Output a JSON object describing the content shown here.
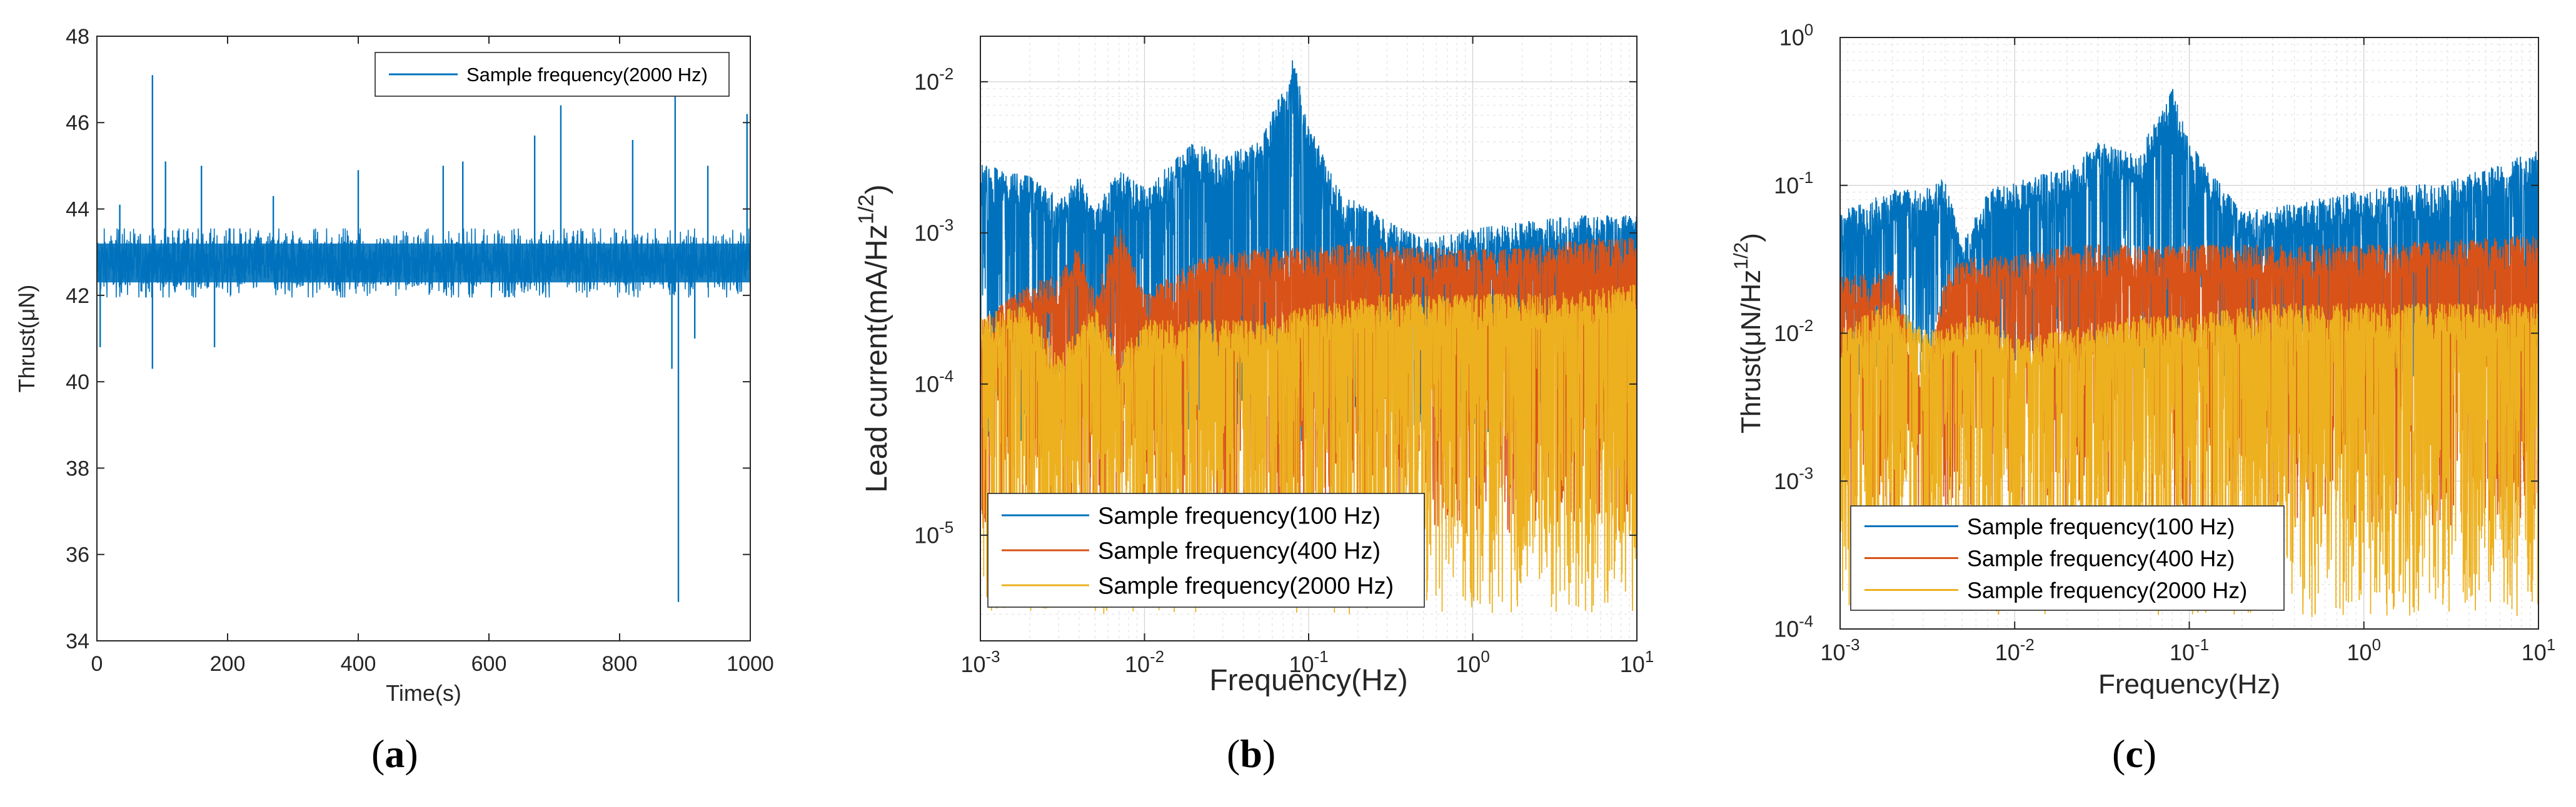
{
  "chart_data": [
    {
      "type": "line",
      "panel": "(a)",
      "panel_letter": "a",
      "title": "",
      "xlabel": "Time(s)",
      "ylabel": "Thrust(μN)",
      "xscale": "linear",
      "yscale": "linear",
      "xlim": [
        0,
        1000
      ],
      "ylim": [
        34,
        48
      ],
      "xticks": [
        0,
        200,
        400,
        600,
        800,
        1000
      ],
      "xtick_labels": [
        "0",
        "200",
        "400",
        "600",
        "800",
        "1000"
      ],
      "yticks": [
        34,
        36,
        38,
        40,
        42,
        44,
        46,
        48
      ],
      "ytick_labels": [
        "34",
        "36",
        "38",
        "40",
        "42",
        "44",
        "46",
        "48"
      ],
      "grid": false,
      "legend_position": "top-right",
      "series": [
        {
          "name": "Sample frequency(2000 Hz)",
          "color": "#0072BD",
          "band": [
            42.1,
            43.4
          ],
          "mean": 42.75,
          "spikes_up": [
            [
              0,
              44.2
            ],
            [
              35,
              44.1
            ],
            [
              85,
              47.1
            ],
            [
              105,
              45.1
            ],
            [
              160,
              45.0
            ],
            [
              270,
              44.3
            ],
            [
              400,
              44.9
            ],
            [
              530,
              45.0
            ],
            [
              560,
              45.1
            ],
            [
              670,
              45.7
            ],
            [
              710,
              46.4
            ],
            [
              820,
              45.6
            ],
            [
              885,
              46.6
            ],
            [
              935,
              45.0
            ],
            [
              995,
              46.2
            ]
          ],
          "spikes_down": [
            [
              5,
              40.8
            ],
            [
              85,
              40.3
            ],
            [
              180,
              40.8
            ],
            [
              880,
              40.3
            ],
            [
              890,
              34.9
            ],
            [
              915,
              41.0
            ]
          ]
        }
      ]
    },
    {
      "type": "line",
      "panel": "(b)",
      "panel_letter": "b",
      "title": "",
      "xlabel": "Frequency(Hz)",
      "ylabel": "Lead current(mA/Hz",
      "ylabel_exponent": "1/2",
      "ylabel_close": ")",
      "xscale": "log",
      "yscale": "log",
      "xlim": [
        0.001,
        10
      ],
      "ylim": [
        2e-06,
        0.02
      ],
      "xticks": [
        0.001,
        0.01,
        0.1,
        1,
        10
      ],
      "xtick_labels": [
        [
          "10",
          "-3"
        ],
        [
          "10",
          "-2"
        ],
        [
          "10",
          "-1"
        ],
        [
          "10",
          "0"
        ],
        [
          "10",
          "1"
        ]
      ],
      "yticks": [
        1e-05,
        0.0001,
        0.001,
        0.01
      ],
      "ytick_labels": [
        [
          "10",
          "-5"
        ],
        [
          "10",
          "-4"
        ],
        [
          "10",
          "-3"
        ],
        [
          "10",
          "-2"
        ]
      ],
      "grid": true,
      "legend_position": "bottom-left",
      "series": [
        {
          "name": "Sample frequency(100 Hz)",
          "color": "#0072BD",
          "points": [
            [
              0.001,
              0.0022
            ],
            [
              0.002,
              0.0018
            ],
            [
              0.003,
              0.0013
            ],
            [
              0.004,
              0.0018
            ],
            [
              0.005,
              0.0011
            ],
            [
              0.007,
              0.002
            ],
            [
              0.01,
              0.0015
            ],
            [
              0.02,
              0.003
            ],
            [
              0.03,
              0.0025
            ],
            [
              0.05,
              0.003
            ],
            [
              0.07,
              0.007
            ],
            [
              0.08,
              0.011
            ],
            [
              0.1,
              0.004
            ],
            [
              0.15,
              0.0015
            ],
            [
              0.3,
              0.0009
            ],
            [
              0.5,
              0.0007
            ],
            [
              1,
              0.0008
            ],
            [
              2,
              0.0009
            ],
            [
              5,
              0.001
            ],
            [
              10,
              0.001
            ]
          ],
          "noise_lower": 4e-05
        },
        {
          "name": "Sample frequency(400 Hz)",
          "color": "#D95319",
          "points": [
            [
              0.001,
              0.0002
            ],
            [
              0.002,
              0.00035
            ],
            [
              0.003,
              0.0004
            ],
            [
              0.004,
              0.00065
            ],
            [
              0.005,
              0.0003
            ],
            [
              0.007,
              0.0009
            ],
            [
              0.01,
              0.0003
            ],
            [
              0.02,
              0.0005
            ],
            [
              0.05,
              0.0006
            ],
            [
              0.1,
              0.0006
            ],
            [
              0.2,
              0.00065
            ],
            [
              0.5,
              0.0006
            ],
            [
              1,
              0.0006
            ],
            [
              2,
              0.0006
            ],
            [
              5,
              0.0007
            ],
            [
              10,
              0.0007
            ]
          ],
          "noise_lower": 1e-05
        },
        {
          "name": "Sample frequency(2000 Hz)",
          "color": "#EDB120",
          "points": [
            [
              0.001,
              0.00022
            ],
            [
              0.002,
              0.00025
            ],
            [
              0.003,
              0.00012
            ],
            [
              0.004,
              0.00018
            ],
            [
              0.005,
              0.00025
            ],
            [
              0.007,
              0.00012
            ],
            [
              0.01,
              0.0002
            ],
            [
              0.02,
              0.0002
            ],
            [
              0.05,
              0.0002
            ],
            [
              0.1,
              0.00025
            ],
            [
              0.3,
              0.0003
            ],
            [
              1,
              0.0003
            ],
            [
              3,
              0.0003
            ],
            [
              10,
              0.00035
            ]
          ],
          "noise_lower": 3e-06
        }
      ]
    },
    {
      "type": "line",
      "panel": "(c)",
      "panel_letter": "c",
      "title": "",
      "xlabel": "Frequency(Hz)",
      "ylabel": "Thrust(μN/Hz",
      "ylabel_exponent": "1/2",
      "ylabel_close": ")",
      "xscale": "log",
      "yscale": "log",
      "xlim": [
        0.001,
        10
      ],
      "ylim": [
        0.0001,
        1
      ],
      "xticks": [
        0.001,
        0.01,
        0.1,
        1,
        10
      ],
      "xtick_labels": [
        [
          "10",
          "-3"
        ],
        [
          "10",
          "-2"
        ],
        [
          "10",
          "-1"
        ],
        [
          "10",
          "0"
        ],
        [
          "10",
          "1"
        ]
      ],
      "yticks": [
        0.0001,
        0.001,
        0.01,
        0.1,
        1
      ],
      "ytick_labels": [
        [
          "10",
          "-4"
        ],
        [
          "10",
          "-3"
        ],
        [
          "10",
          "-2"
        ],
        [
          "10",
          "-1"
        ],
        [
          "10",
          "0"
        ]
      ],
      "grid": true,
      "legend_position": "bottom-left",
      "series": [
        {
          "name": "Sample frequency(100 Hz)",
          "color": "#0072BD",
          "points": [
            [
              0.001,
              0.05
            ],
            [
              0.002,
              0.07
            ],
            [
              0.003,
              0.07
            ],
            [
              0.004,
              0.085
            ],
            [
              0.005,
              0.03
            ],
            [
              0.007,
              0.07
            ],
            [
              0.01,
              0.08
            ],
            [
              0.02,
              0.1
            ],
            [
              0.03,
              0.15
            ],
            [
              0.05,
              0.12
            ],
            [
              0.07,
              0.25
            ],
            [
              0.08,
              0.35
            ],
            [
              0.1,
              0.15
            ],
            [
              0.2,
              0.05
            ],
            [
              0.5,
              0.06
            ],
            [
              1,
              0.07
            ],
            [
              3,
              0.08
            ],
            [
              10,
              0.13
            ]
          ],
          "noise_lower": 0.005
        },
        {
          "name": "Sample frequency(400 Hz)",
          "color": "#D95319",
          "points": [
            [
              0.001,
              0.018
            ],
            [
              0.002,
              0.02
            ],
            [
              0.003,
              0.003
            ],
            [
              0.004,
              0.018
            ],
            [
              0.005,
              0.025
            ],
            [
              0.007,
              0.025
            ],
            [
              0.01,
              0.025
            ],
            [
              0.02,
              0.03
            ],
            [
              0.05,
              0.03
            ],
            [
              0.1,
              0.03
            ],
            [
              0.3,
              0.03
            ],
            [
              1,
              0.03
            ],
            [
              3,
              0.032
            ],
            [
              10,
              0.035
            ]
          ],
          "noise_lower": 0.0005
        },
        {
          "name": "Sample frequency(2000 Hz)",
          "color": "#EDB120",
          "points": [
            [
              0.001,
              0.008
            ],
            [
              0.002,
              0.013
            ],
            [
              0.003,
              0.008
            ],
            [
              0.004,
              0.008
            ],
            [
              0.005,
              0.01
            ],
            [
              0.007,
              0.01
            ],
            [
              0.01,
              0.007
            ],
            [
              0.02,
              0.008
            ],
            [
              0.05,
              0.01
            ],
            [
              0.1,
              0.01
            ],
            [
              0.3,
              0.012
            ],
            [
              1,
              0.012
            ],
            [
              3,
              0.012
            ],
            [
              10,
              0.012
            ]
          ],
          "noise_lower": 0.00012
        }
      ]
    }
  ]
}
